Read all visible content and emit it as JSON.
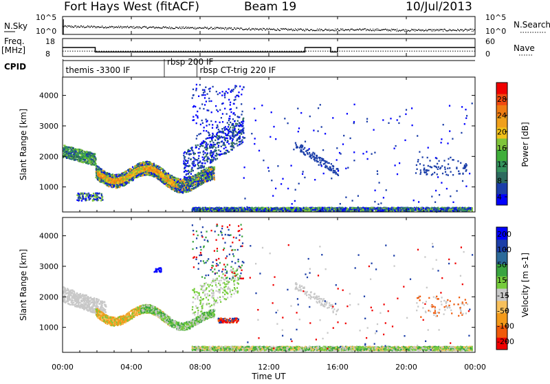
{
  "header": {
    "title": "Fort Hays West (fitACF)",
    "beam": "Beam 19",
    "date": "10/Jul/2013"
  },
  "panels": {
    "nsky": {
      "left_label": "N.Sky",
      "right_label": "N.Search",
      "left_ticks": [
        "10^5",
        "10^0"
      ],
      "right_ticks": [
        "10^5",
        "10^0"
      ]
    },
    "freq": {
      "left_label_line1": "Freq.",
      "left_label_line2": "[MHz]",
      "right_label": "Nave",
      "left_ticks": [
        "18",
        "8"
      ],
      "right_ticks": [
        "60",
        "0"
      ]
    },
    "cpid": {
      "label": "CPID",
      "modes": [
        {
          "text": "themis -3300 IF",
          "start_hour": 0.1
        },
        {
          "text": "rbsp 200 IF",
          "start_hour": 6.0
        },
        {
          "text": "rbsp CT-trig 220 IF",
          "start_hour": 7.9
        }
      ]
    },
    "power": {
      "ylabel": "Slant Range [km]",
      "colorbar_label": "Power [dB]",
      "colorbar_ticks": [
        "28",
        "24",
        "20",
        "16",
        "12",
        "8",
        "4"
      ]
    },
    "velocity": {
      "ylabel": "Slant Range [km]",
      "colorbar_label": "Velocity [m s-1]",
      "colorbar_ticks": [
        "200",
        "100",
        "50",
        "15",
        "-15",
        "-50",
        "-100",
        "-200"
      ]
    }
  },
  "time_axis": {
    "label": "Time UT",
    "ticks": [
      "00:00",
      "04:00",
      "08:00",
      "12:00",
      "16:00",
      "20:00",
      "00:00"
    ]
  },
  "chart_data": [
    {
      "type": "line",
      "name": "nsky",
      "x_hours": [
        0,
        2,
        4,
        6,
        8,
        10,
        12,
        14,
        16,
        18,
        20,
        22,
        24
      ],
      "nsky_log10": [
        2.3,
        2.2,
        2.1,
        2.0,
        1.9,
        1.7,
        1.5,
        1.4,
        1.4,
        1.4,
        1.3,
        1.3,
        1.3
      ],
      "ylim": [
        0,
        5
      ]
    },
    {
      "type": "line",
      "name": "freq-nave",
      "freq_steps": [
        {
          "start": 0.0,
          "end": 1.9,
          "mhz": 13
        },
        {
          "start": 1.9,
          "end": 14.1,
          "mhz": 10.5
        },
        {
          "start": 14.1,
          "end": 15.6,
          "mhz": 13
        },
        {
          "start": 15.6,
          "end": 16.0,
          "mhz": 10.5
        },
        {
          "start": 16.0,
          "end": 24.0,
          "mhz": 13
        }
      ],
      "nave": 18,
      "freq_ylim": [
        8,
        18
      ],
      "nave_ylim": [
        0,
        60
      ]
    },
    {
      "type": "heatmap",
      "name": "power",
      "xlim_hours": [
        0,
        24
      ],
      "ylim_km": [
        180,
        4600
      ],
      "ylabels": [
        "1000",
        "2000",
        "3000",
        "4000"
      ],
      "clim_db": [
        0,
        32
      ],
      "colors": [
        "#0000ff",
        "#1b3ea8",
        "#2c6a5e",
        "#34915c",
        "#3fae3a",
        "#7fc43a",
        "#f2c21a",
        "#f0a01b",
        "#ef7b12",
        "#f04a10",
        "#f00000"
      ]
    },
    {
      "type": "heatmap",
      "name": "velocity",
      "xlim_hours": [
        0,
        24
      ],
      "ylim_km": [
        180,
        4600
      ],
      "ylabels": [
        "1000",
        "2000",
        "3000",
        "4000"
      ],
      "clim_ms": [
        -250,
        250
      ],
      "colors": [
        "#f00000",
        "#f05a0a",
        "#f39a1a",
        "#f7c05c",
        "#c8c8c8",
        "#76cc3c",
        "#3aa440",
        "#2c6a9a",
        "#1b3ea8",
        "#0000ff"
      ]
    }
  ]
}
